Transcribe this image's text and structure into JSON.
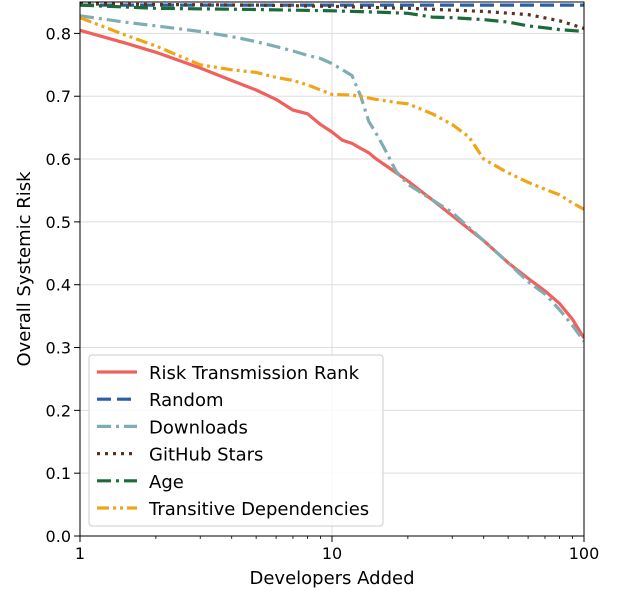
{
  "chart_data": {
    "type": "line",
    "xlabel": "Developers Added",
    "ylabel": "Overall Systemic Risk",
    "xscale": "log",
    "xlim": [
      1,
      100
    ],
    "ylim": [
      0.0,
      0.85
    ],
    "x_ticks": [
      1,
      10,
      100
    ],
    "x_tick_labels": [
      "1",
      "10",
      "100"
    ],
    "y_ticks": [
      0.0,
      0.1,
      0.2,
      0.3,
      0.4,
      0.5,
      0.6,
      0.7,
      0.8
    ],
    "y_tick_labels": [
      "0.0",
      "0.1",
      "0.2",
      "0.3",
      "0.4",
      "0.5",
      "0.6",
      "0.7",
      "0.8"
    ],
    "grid": true,
    "legend_position": "lower-left",
    "series": [
      {
        "name": "Risk Transmission Rank",
        "color": "#f0605d",
        "dash": "solid",
        "x": [
          1,
          1.5,
          2,
          3,
          4,
          5,
          6,
          7,
          8,
          9,
          10,
          11,
          12,
          13,
          14,
          15,
          17,
          20,
          25,
          30,
          40,
          50,
          60,
          70,
          80,
          90,
          100
        ],
        "y": [
          0.805,
          0.785,
          0.77,
          0.745,
          0.725,
          0.71,
          0.695,
          0.678,
          0.672,
          0.655,
          0.643,
          0.63,
          0.625,
          0.617,
          0.61,
          0.6,
          0.585,
          0.565,
          0.535,
          0.51,
          0.47,
          0.435,
          0.41,
          0.39,
          0.37,
          0.345,
          0.315
        ]
      },
      {
        "name": "Random",
        "color": "#2a5ea8",
        "dash": "dashed",
        "x": [
          1,
          2,
          5,
          10,
          20,
          50,
          100
        ],
        "y": [
          0.845,
          0.845,
          0.845,
          0.845,
          0.845,
          0.845,
          0.845
        ]
      },
      {
        "name": "Downloads",
        "color": "#7fadb2",
        "dash": "dashdot",
        "x": [
          1,
          1.5,
          2,
          3,
          4,
          5,
          6,
          7,
          8,
          9,
          10,
          11,
          12,
          13,
          14,
          15,
          16,
          18,
          20,
          25,
          30,
          40,
          50,
          60,
          70,
          80,
          90,
          100
        ],
        "y": [
          0.828,
          0.818,
          0.812,
          0.803,
          0.795,
          0.787,
          0.779,
          0.772,
          0.765,
          0.76,
          0.752,
          0.742,
          0.733,
          0.7,
          0.66,
          0.64,
          0.62,
          0.58,
          0.56,
          0.535,
          0.515,
          0.47,
          0.435,
          0.405,
          0.385,
          0.36,
          0.335,
          0.31
        ]
      },
      {
        "name": "GitHub Stars",
        "color": "#5a3420",
        "dash": "dotted",
        "x": [
          1,
          2,
          5,
          10,
          20,
          40,
          60,
          80,
          100
        ],
        "y": [
          0.847,
          0.846,
          0.845,
          0.843,
          0.84,
          0.835,
          0.83,
          0.82,
          0.808
        ]
      },
      {
        "name": "Age",
        "color": "#1b6b3a",
        "dash": "dashdot",
        "x": [
          1,
          2,
          5,
          10,
          15,
          20,
          25,
          30,
          40,
          50,
          60,
          70,
          80,
          100
        ],
        "y": [
          0.845,
          0.84,
          0.838,
          0.836,
          0.834,
          0.832,
          0.826,
          0.825,
          0.822,
          0.818,
          0.812,
          0.809,
          0.806,
          0.803
        ]
      },
      {
        "name": "Transitive Dependencies",
        "color": "#f0a418",
        "dash": "dashdotdot",
        "x": [
          1,
          1.5,
          2,
          3,
          4,
          5,
          6,
          7,
          8,
          9,
          10,
          12,
          15,
          18,
          20,
          25,
          30,
          35,
          40,
          50,
          60,
          70,
          80,
          90,
          100
        ],
        "y": [
          0.825,
          0.798,
          0.78,
          0.75,
          0.742,
          0.738,
          0.73,
          0.725,
          0.718,
          0.71,
          0.703,
          0.702,
          0.695,
          0.69,
          0.688,
          0.672,
          0.655,
          0.635,
          0.6,
          0.578,
          0.563,
          0.552,
          0.543,
          0.53,
          0.52
        ]
      }
    ]
  }
}
